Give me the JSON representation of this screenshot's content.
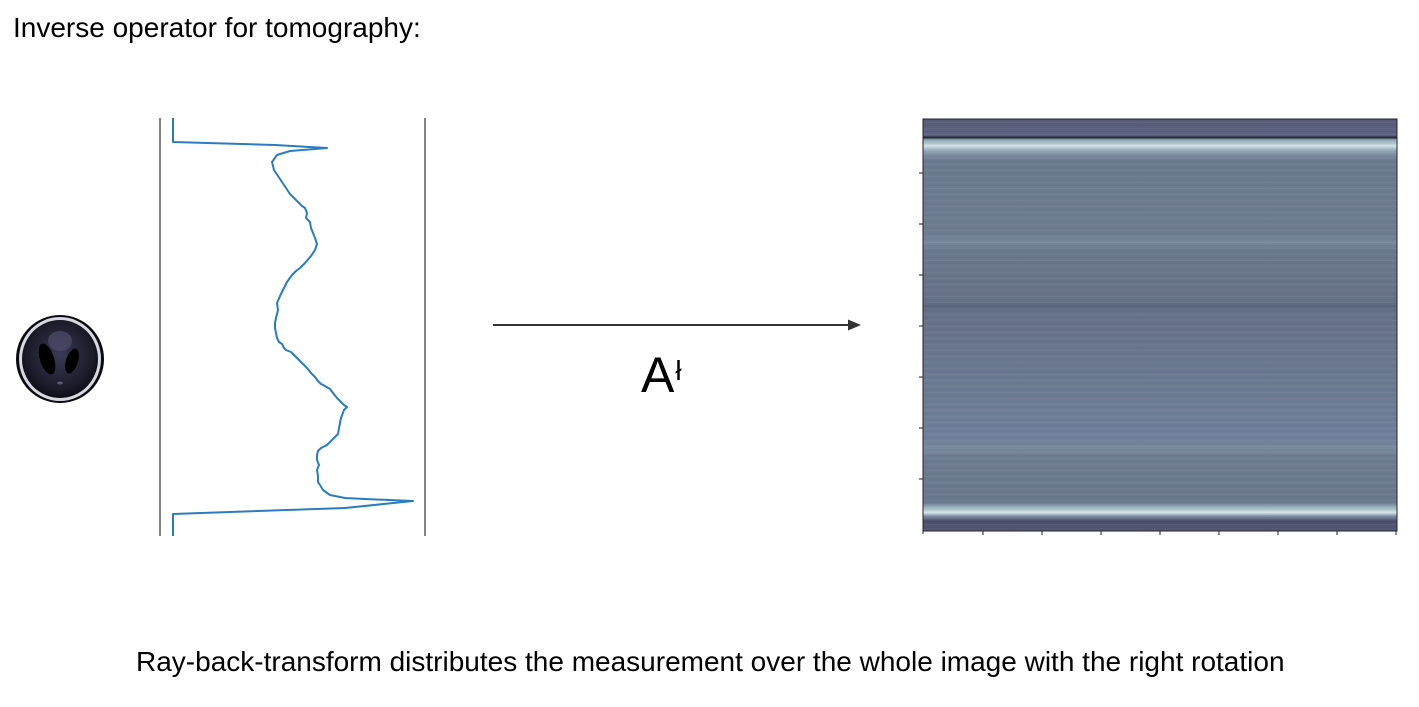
{
  "slide": {
    "title": "Inverse operator for tomography:",
    "caption": "Ray-back-transform distributes the measurement over the whole image with the right rotation"
  },
  "operator": {
    "symbol": "A",
    "superscript": "ł"
  },
  "colors": {
    "profile_line": "#2a7cc0",
    "frame_line": "#333333",
    "arrow": "#333333",
    "backprojection_base": "#6a788e",
    "backprojection_edge": "#4a4e6a",
    "backprojection_bright": "#c8dde0",
    "phantom_dark": "#14141f"
  },
  "icons": {
    "phantom": "shepp-logan-phantom-icon"
  }
}
